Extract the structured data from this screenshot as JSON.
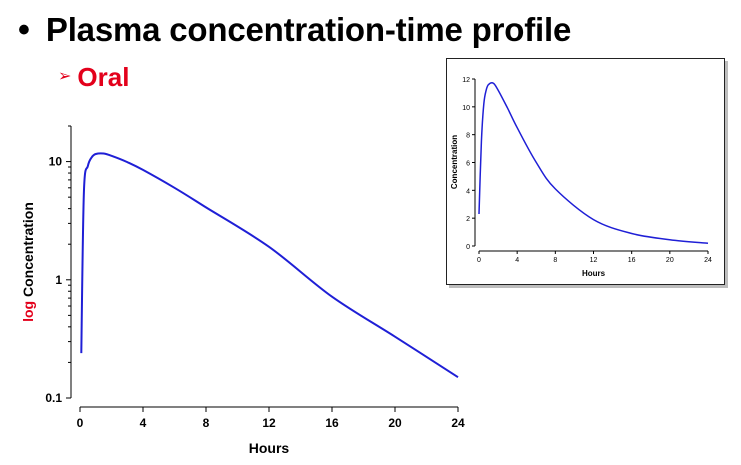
{
  "header": {
    "bullet": "•",
    "title": "Plasma concentration-time profile",
    "arrow": "➢",
    "subtitle": "Oral",
    "accent_color": "#e3001b"
  },
  "chart_data": [
    {
      "type": "line",
      "yscale": "log",
      "xlabel": "Hours",
      "ylabel_prefix": "log",
      "ylabel_main": "Concentration",
      "xlim": [
        0,
        24
      ],
      "ylim": [
        0.1,
        20
      ],
      "xticks": [
        0,
        4,
        8,
        12,
        16,
        20,
        24
      ],
      "xtick_labels": [
        "0",
        "4",
        "8",
        "12",
        "16",
        "20",
        "24"
      ],
      "yticks": [
        0.1,
        1,
        10
      ],
      "ytick_labels": [
        "0.1",
        "1",
        "10"
      ],
      "grid": false,
      "line_color": "#1f1fd6",
      "x": [
        0.08,
        0.25,
        0.5,
        0.75,
        1,
        1.5,
        2,
        3,
        4,
        6,
        8,
        12,
        16,
        20,
        24
      ],
      "y": [
        0.24,
        5.5,
        9.2,
        10.9,
        11.6,
        11.7,
        11.2,
        9.9,
        8.5,
        6.0,
        4.1,
        1.9,
        0.72,
        0.33,
        0.15
      ]
    },
    {
      "type": "line",
      "xlabel": "Hours",
      "ylabel": "Concentration",
      "xlim": [
        0,
        24
      ],
      "ylim": [
        0,
        12
      ],
      "xticks": [
        0,
        4,
        8,
        12,
        16,
        20,
        24
      ],
      "xtick_labels": [
        "0",
        "4",
        "8",
        "12",
        "16",
        "20",
        "24"
      ],
      "yticks": [
        0,
        2,
        4,
        6,
        8,
        10,
        12
      ],
      "ytick_labels": [
        "0",
        "2",
        "4",
        "6",
        "8",
        "10",
        "12"
      ],
      "grid": false,
      "line_color": "#1f1fd6",
      "x": [
        0,
        0.25,
        0.5,
        0.75,
        1,
        1.5,
        2,
        3,
        4,
        6,
        8,
        12,
        16,
        20,
        24
      ],
      "y": [
        2.3,
        7.5,
        10.2,
        11.2,
        11.6,
        11.7,
        11.2,
        9.9,
        8.5,
        6.0,
        4.1,
        1.9,
        0.9,
        0.45,
        0.2
      ]
    }
  ]
}
